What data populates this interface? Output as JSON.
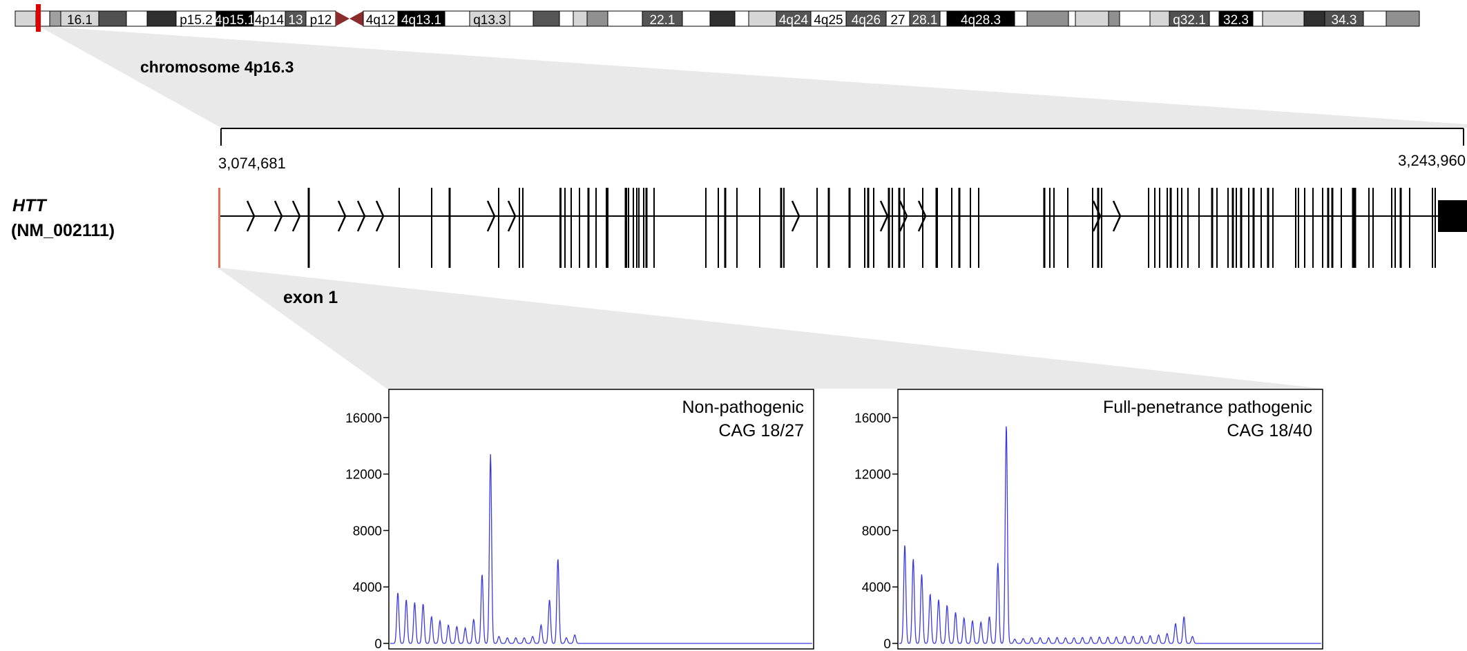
{
  "ideogram": {
    "bands": [
      {
        "label": "",
        "shade": "#d6d6d6"
      },
      {
        "label": "",
        "shade": "#ffffff"
      },
      {
        "label": "",
        "shade": "#a0a0a0"
      },
      {
        "label": "16.1",
        "shade": "#d6d6d6"
      },
      {
        "label": "",
        "shade": "#505050"
      },
      {
        "label": "",
        "shade": "#ffffff"
      },
      {
        "label": "",
        "shade": "#303030"
      },
      {
        "label": "p15.2",
        "shade": "#ffffff"
      },
      {
        "label": "4p15.1",
        "shade": "#000000"
      },
      {
        "label": "4p14",
        "shade": "#ffffff"
      },
      {
        "label": "13",
        "shade": "#555555"
      },
      {
        "label": "p12",
        "shade": "#ffffff"
      },
      {
        "label": "",
        "shade": "#7a2e2e"
      },
      {
        "label": "4q12",
        "shade": "#ffffff"
      },
      {
        "label": "4q13.1",
        "shade": "#000000"
      },
      {
        "label": "",
        "shade": "#ffffff"
      },
      {
        "label": "q13.3",
        "shade": "#d6d6d6"
      },
      {
        "label": "",
        "shade": "#ffffff"
      },
      {
        "label": "",
        "shade": "#555555"
      },
      {
        "label": "",
        "shade": "#ffffff"
      },
      {
        "label": "",
        "shade": "#d6d6d6"
      },
      {
        "label": "",
        "shade": "#909090"
      },
      {
        "label": "",
        "shade": "#ffffff"
      },
      {
        "label": "22.1",
        "shade": "#555555"
      },
      {
        "label": "",
        "shade": "#ffffff"
      },
      {
        "label": "",
        "shade": "#303030"
      },
      {
        "label": "",
        "shade": "#ffffff"
      },
      {
        "label": "",
        "shade": "#d6d6d6"
      },
      {
        "label": "4q24",
        "shade": "#555555"
      },
      {
        "label": "4q25",
        "shade": "#ffffff"
      },
      {
        "label": "4q26",
        "shade": "#555555"
      },
      {
        "label": "27",
        "shade": "#ffffff"
      },
      {
        "label": "28.1",
        "shade": "#555555"
      },
      {
        "label": "",
        "shade": "#ffffff"
      },
      {
        "label": "4q28.3",
        "shade": "#000000"
      },
      {
        "label": "",
        "shade": "#ffffff"
      },
      {
        "label": "",
        "shade": "#909090"
      },
      {
        "label": "",
        "shade": "#ffffff"
      },
      {
        "label": "",
        "shade": "#d6d6d6"
      },
      {
        "label": "",
        "shade": "#909090"
      },
      {
        "label": "",
        "shade": "#ffffff"
      },
      {
        "label": "",
        "shade": "#d6d6d6"
      },
      {
        "label": "q32.1",
        "shade": "#505050"
      },
      {
        "label": "",
        "shade": "#ffffff"
      },
      {
        "label": "32.3",
        "shade": "#000000"
      },
      {
        "label": "",
        "shade": "#ffffff"
      },
      {
        "label": "",
        "shade": "#d6d6d6"
      },
      {
        "label": "",
        "shade": "#303030"
      },
      {
        "label": "34.3",
        "shade": "#505050"
      },
      {
        "label": "",
        "shade": "#ffffff"
      },
      {
        "label": "",
        "shade": "#909090"
      }
    ],
    "marker_color": "#e00000",
    "centromere_color": "#8b2c2c"
  },
  "zoom1": {
    "label": "chromosome 4p16.3",
    "start_coord": "3,074,681",
    "end_coord": "3,243,960"
  },
  "gene": {
    "symbol": "HTT",
    "transcript": "(NM_002111)",
    "exon_label": "exon 1",
    "exon1_color": "#e07050"
  },
  "chart_data": [
    {
      "type": "line",
      "title": "Non-pathogenic",
      "subtitle": "CAG 18/27",
      "yticks": [
        0,
        4000,
        8000,
        12000,
        16000
      ],
      "ylim": [
        0,
        18000
      ],
      "peaks": [
        3600,
        3100,
        2900,
        2800,
        1900,
        1600,
        1300,
        1200,
        1100,
        1700,
        4900,
        13400,
        500,
        400,
        400,
        400,
        500,
        1300,
        3100,
        6000,
        400,
        600
      ],
      "line_color": "#3a3ae0"
    },
    {
      "type": "line",
      "title": "Full-penetrance pathogenic",
      "subtitle": "CAG 18/40",
      "yticks": [
        0,
        4000,
        8000,
        12000,
        16000
      ],
      "ylim": [
        0,
        18000
      ],
      "peaks": [
        7000,
        6000,
        4900,
        3500,
        3100,
        2700,
        2200,
        1800,
        1600,
        1500,
        1900,
        5700,
        15500,
        300,
        350,
        400,
        400,
        400,
        420,
        400,
        400,
        420,
        450,
        450,
        450,
        450,
        500,
        500,
        500,
        550,
        600,
        700,
        1400,
        1900,
        500
      ],
      "line_color": "#3a3ae0"
    }
  ]
}
